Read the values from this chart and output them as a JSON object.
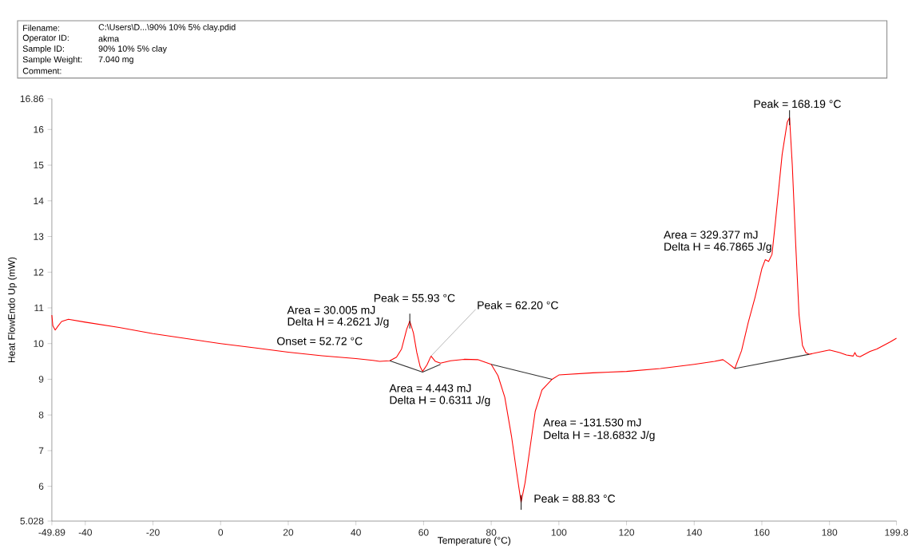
{
  "chart_data": {
    "type": "line",
    "xlabel": "Temperature (°C)",
    "ylabel": "Heat FlowEndo Up (mW)",
    "xlim": [
      -49.89,
      199.8
    ],
    "ylim": [
      5.028,
      16.86
    ],
    "xticks": [
      -49.89,
      -40,
      -20,
      0,
      20,
      40,
      60,
      80,
      100,
      120,
      140,
      160,
      180,
      199.8
    ],
    "yticks": [
      5.028,
      6,
      7,
      8,
      9,
      10,
      11,
      12,
      13,
      14,
      15,
      16,
      16.86
    ],
    "line_style": "solid",
    "series": [
      {
        "color": "#ff0000",
        "x": [
          -49.89,
          -49.6,
          -48.9,
          -48,
          -47,
          -45,
          -40,
          -30,
          -20,
          -10,
          0,
          10,
          20,
          30,
          40,
          45,
          47,
          50,
          52,
          53.5,
          55,
          55.93,
          57,
          58,
          59,
          59.7,
          61,
          62.2,
          63.5,
          65,
          68,
          72,
          76,
          80,
          82,
          84,
          86,
          87.5,
          88.83,
          90,
          91.5,
          93,
          95,
          98,
          100,
          110,
          120,
          130,
          140,
          146,
          148.5,
          150,
          152,
          154,
          156,
          158,
          160,
          161,
          162,
          163,
          164,
          166,
          167.5,
          168.19,
          169,
          170,
          171,
          172,
          173,
          174,
          178,
          180,
          183,
          185,
          187,
          187.5,
          188,
          189,
          190,
          192,
          194,
          196,
          198,
          199.8
        ],
        "values": [
          10.8,
          10.5,
          10.38,
          10.5,
          10.62,
          10.68,
          10.6,
          10.45,
          10.28,
          10.14,
          10.0,
          9.88,
          9.76,
          9.66,
          9.58,
          9.53,
          9.5,
          9.52,
          9.62,
          9.85,
          10.4,
          10.63,
          10.3,
          9.75,
          9.35,
          9.22,
          9.4,
          9.65,
          9.5,
          9.45,
          9.52,
          9.56,
          9.55,
          9.42,
          9.1,
          8.5,
          7.4,
          6.4,
          5.55,
          6.1,
          7.1,
          8.1,
          8.7,
          9.0,
          9.12,
          9.18,
          9.22,
          9.3,
          9.42,
          9.5,
          9.55,
          9.45,
          9.3,
          9.8,
          10.6,
          11.3,
          12.1,
          12.35,
          12.3,
          12.5,
          13.4,
          15.3,
          16.2,
          16.33,
          15.0,
          12.8,
          10.8,
          9.95,
          9.75,
          9.7,
          9.78,
          9.82,
          9.75,
          9.68,
          9.65,
          9.75,
          9.66,
          9.63,
          9.68,
          9.78,
          9.85,
          9.95,
          10.05,
          10.15
        ]
      },
      {
        "color": "#333333",
        "x": [
          50,
          59.7,
          65,
          72,
          80,
          98,
          125,
          152,
          174
        ],
        "values": [
          9.52,
          9.2,
          9.42,
          null,
          9.42,
          9.0,
          null,
          9.3,
          9.7
        ]
      }
    ],
    "annotations": [
      {
        "text": "Peak = 55.93 °C",
        "x": 55.93,
        "y": 10.63
      },
      "Area = 30.005 mJ",
      "Delta H = 4.2621 J/g",
      "Onset = 52.72 °C",
      {
        "text": "Peak = 62.20 °C",
        "x": 62.2,
        "y": 9.65
      },
      "Area = 4.443 mJ",
      "Delta H = 0.6311 J/g",
      "Area = -131.530 mJ",
      "Delta H = -18.6832 J/g",
      {
        "text": "Peak = 88.83 °C",
        "x": 88.83,
        "y": 5.55
      },
      "Area = 329.377 mJ",
      "Delta H = 46.7865 J/g",
      {
        "text": "Peak = 168.19 °C",
        "x": 168.19,
        "y": 16.33
      },
      "Filename:",
      "C:\\Users\\D...\\90% 10% 5% clay.pdid",
      "Operator ID:",
      "akma",
      "Sample ID:",
      "90% 10% 5% clay",
      "Sample Weight:",
      "7.040 mg",
      "Comment:"
    ]
  }
}
